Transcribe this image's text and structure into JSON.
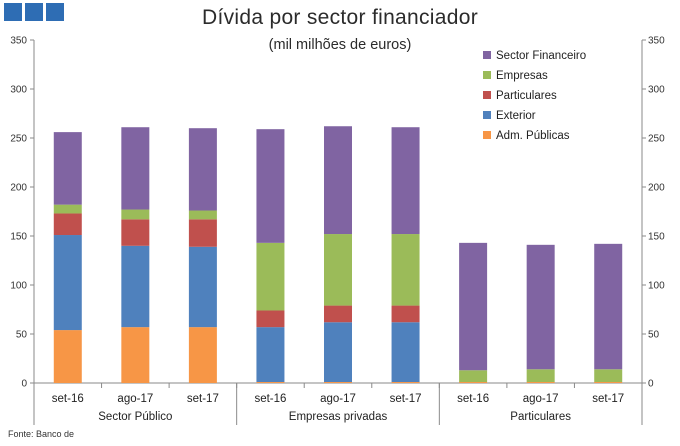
{
  "logo": {
    "icon": "bank-logo-icon",
    "color": "#2e6db4"
  },
  "chart_data": {
    "type": "bar",
    "stacked": true,
    "title": "Dívida por sector financiador",
    "subtitle": "(mil milhões de euros)",
    "groups": [
      "Sector Público",
      "Empresas privadas",
      "Particulares"
    ],
    "categories": [
      "set-16",
      "ago-17",
      "set-17",
      "set-16",
      "ago-17",
      "set-17",
      "set-16",
      "ago-17",
      "set-17"
    ],
    "ylim": [
      0,
      350
    ],
    "yticks": [
      0,
      50,
      100,
      150,
      200,
      250,
      300,
      350
    ],
    "secondary_axis": true,
    "grid": false,
    "legend_position": "top-right",
    "series": [
      {
        "name": "Adm. Públicas",
        "color": "#f79646",
        "values": [
          54,
          57,
          57,
          1,
          1,
          1,
          1,
          1,
          1
        ]
      },
      {
        "name": "Exterior",
        "color": "#4f81bd",
        "values": [
          97,
          83,
          82,
          56,
          61,
          61,
          0,
          0,
          0
        ]
      },
      {
        "name": "Particulares",
        "color": "#c0504d",
        "values": [
          22,
          27,
          28,
          17,
          17,
          17,
          0,
          0,
          0
        ]
      },
      {
        "name": "Empresas",
        "color": "#9bbb59",
        "values": [
          9,
          10,
          9,
          69,
          73,
          73,
          12,
          13,
          13
        ]
      },
      {
        "name": "Sector Financeiro",
        "color": "#8064a2",
        "values": [
          74,
          84,
          84,
          116,
          110,
          109,
          130,
          127,
          128
        ]
      }
    ],
    "legend_order": [
      "Sector Financeiro",
      "Empresas",
      "Particulares",
      "Exterior",
      "Adm. Públicas"
    ]
  },
  "source": "Fonte: Banco de"
}
